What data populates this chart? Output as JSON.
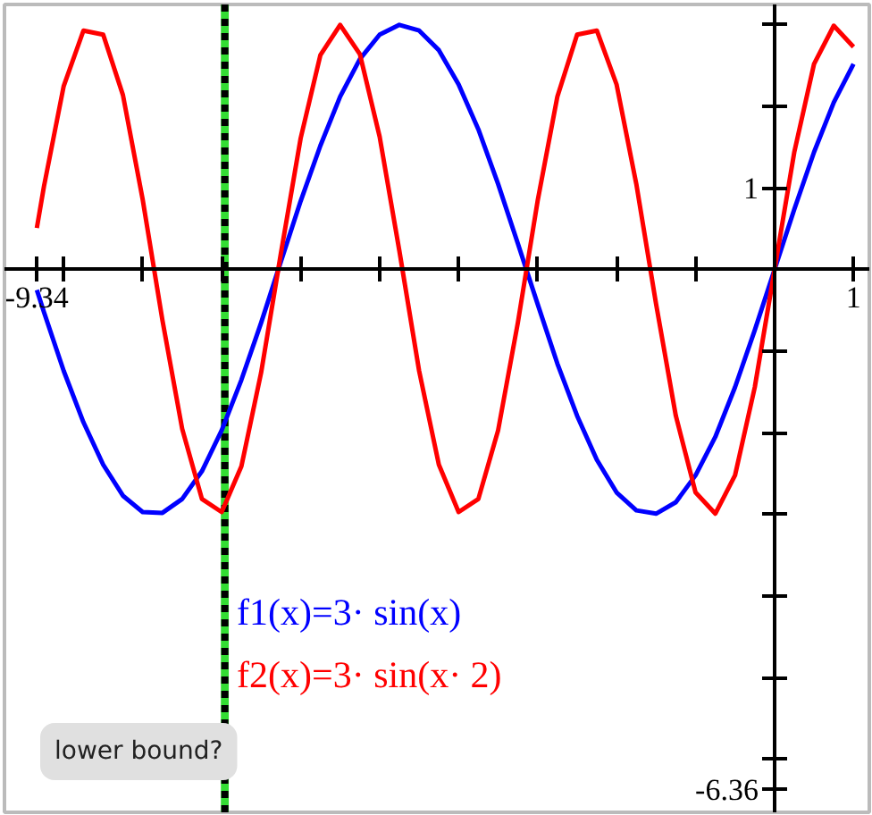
{
  "chart_data": {
    "type": "line",
    "x": [
      -9.34,
      -9.25,
      -9.0,
      -8.75,
      -8.5,
      -8.25,
      -8.0,
      -7.75,
      -7.5,
      -7.25,
      -7.0,
      -6.75,
      -6.5,
      -6.25,
      -6.0,
      -5.75,
      -5.5,
      -5.25,
      -5.0,
      -4.75,
      -4.5,
      -4.25,
      -4.0,
      -3.75,
      -3.5,
      -3.25,
      -3.0,
      -2.75,
      -2.5,
      -2.25,
      -2.0,
      -1.75,
      -1.5,
      -1.25,
      -1.0,
      -0.75,
      -0.5,
      -0.25,
      0,
      0.25,
      0.5,
      0.75,
      1.0
    ],
    "series": [
      {
        "name": "f1(x)=3· sin(x)",
        "color": "#0000ff",
        "values": [
          -0.25,
          -0.52,
          -1.24,
          -1.87,
          -2.39,
          -2.77,
          -2.97,
          -2.98,
          -2.81,
          -2.47,
          -1.97,
          -1.35,
          -0.65,
          0.1,
          0.84,
          1.52,
          2.12,
          2.58,
          2.88,
          3.0,
          2.93,
          2.69,
          2.27,
          1.72,
          1.05,
          0.32,
          -0.42,
          -1.15,
          -1.79,
          -2.33,
          -2.73,
          -2.95,
          -2.99,
          -2.85,
          -2.52,
          -2.05,
          -1.44,
          -0.74,
          0,
          0.74,
          1.44,
          2.05,
          2.52
        ]
      },
      {
        "name": "f2(x)=3· sin(x· 2)",
        "color": "#ff0000",
        "values": [
          0.51,
          1.02,
          2.25,
          2.93,
          2.88,
          2.14,
          0.86,
          -0.62,
          -1.95,
          -2.81,
          -2.97,
          -2.41,
          -1.26,
          0.2,
          1.61,
          2.63,
          3.0,
          2.64,
          1.63,
          0.23,
          -1.24,
          -2.39,
          -2.97,
          -2.81,
          -1.97,
          -0.65,
          0.84,
          2.12,
          2.88,
          2.93,
          2.27,
          1.05,
          -0.42,
          -1.79,
          -2.73,
          -2.99,
          -2.52,
          -1.44,
          0,
          1.44,
          2.52,
          2.99,
          2.73
        ]
      }
    ],
    "xlim": [
      -9.75,
      1.2
    ],
    "ylim": [
      -6.65,
      3.25
    ],
    "xticks": [
      {
        "value": -9.34,
        "label": "-9.34"
      },
      {
        "value": -9,
        "label": null
      },
      {
        "value": -8,
        "label": null
      },
      {
        "value": -7,
        "label": null
      },
      {
        "value": -6,
        "label": null
      },
      {
        "value": -5,
        "label": null
      },
      {
        "value": -4,
        "label": null
      },
      {
        "value": -3,
        "label": null
      },
      {
        "value": -2,
        "label": null
      },
      {
        "value": -1,
        "label": null
      },
      {
        "value": 1,
        "label": "1"
      }
    ],
    "yticks": [
      {
        "value": -6.36,
        "label": "-6.36"
      },
      {
        "value": -6,
        "label": null
      },
      {
        "value": -5,
        "label": null
      },
      {
        "value": -4,
        "label": null
      },
      {
        "value": -3,
        "label": null
      },
      {
        "value": -2,
        "label": null
      },
      {
        "value": -1,
        "label": null
      },
      {
        "value": 1,
        "label": "1"
      },
      {
        "value": 2,
        "label": null
      },
      {
        "value": 3,
        "label": null
      }
    ],
    "ref_lines": [
      {
        "axis": "x",
        "value": -6.96,
        "label": null,
        "color": "#000000",
        "line_style": "dotted"
      }
    ],
    "bands": [
      {
        "axis": "x",
        "from": -7.01,
        "to": -6.91,
        "label": null,
        "color": "#33dd33"
      }
    ],
    "annotations": [
      "lower bound?"
    ]
  }
}
